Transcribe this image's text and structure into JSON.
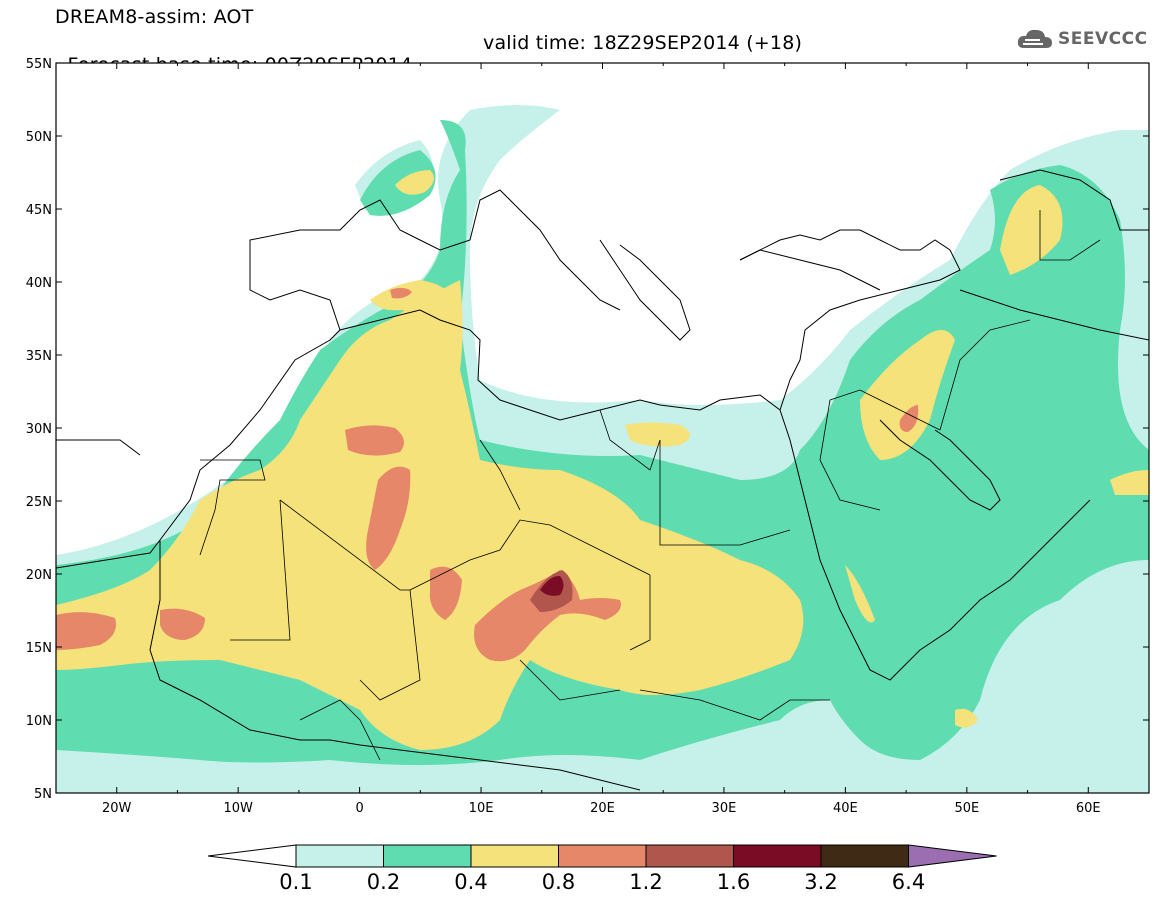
{
  "title": {
    "line1": "DREAM8-assim: AOT",
    "base": "Forecast base time: 00Z29SEP2014",
    "valid": "valid time: 18Z29SEP2014 (+18)"
  },
  "logo": {
    "text": "SEEVCCC",
    "icon": "cloud-icon"
  },
  "map": {
    "lon_range": [
      -25,
      65
    ],
    "lat_range": [
      5,
      55
    ],
    "lat_ticks": [
      {
        "value": 55,
        "label": "55N"
      },
      {
        "value": 50,
        "label": "50N"
      },
      {
        "value": 45,
        "label": "45N"
      },
      {
        "value": 40,
        "label": "40N"
      },
      {
        "value": 35,
        "label": "35N"
      },
      {
        "value": 30,
        "label": "30N"
      },
      {
        "value": 25,
        "label": "25N"
      },
      {
        "value": 20,
        "label": "20N"
      },
      {
        "value": 15,
        "label": "15N"
      },
      {
        "value": 10,
        "label": "10N"
      },
      {
        "value": 5,
        "label": "5N"
      }
    ],
    "lon_ticks": [
      {
        "value": -20,
        "label": "20W"
      },
      {
        "value": -10,
        "label": "10W"
      },
      {
        "value": 0,
        "label": "0"
      },
      {
        "value": 10,
        "label": "10E"
      },
      {
        "value": 20,
        "label": "20E"
      },
      {
        "value": 30,
        "label": "30E"
      },
      {
        "value": 40,
        "label": "40E"
      },
      {
        "value": 50,
        "label": "50E"
      },
      {
        "value": 60,
        "label": "60E"
      }
    ]
  },
  "colorbar": {
    "levels": [
      "0.1",
      "0.2",
      "0.4",
      "0.8",
      "1.2",
      "1.6",
      "3.2",
      "6.4"
    ],
    "colors": [
      "#c6f0ea",
      "#5fdcb0",
      "#f6e27a",
      "#e6876a",
      "#b0564c",
      "#7a0c25",
      "#3f2a16"
    ],
    "under_color": "#ffffff",
    "over_color": "#9a6eb0"
  },
  "colors": {
    "c1": "#c6f0ea",
    "c2": "#5fdcb0",
    "c3": "#f6e27a",
    "c4": "#e6876a",
    "c5": "#b0564c",
    "c6": "#7a0c25",
    "ocean": "#ffffff",
    "line": "#000000"
  }
}
